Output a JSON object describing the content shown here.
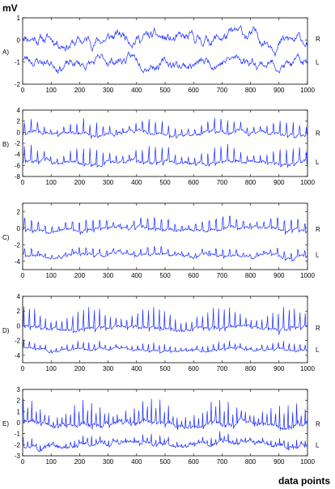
{
  "figure": {
    "ylabel": "mV",
    "xlabel": "data points",
    "series_color": "#1a2bff"
  },
  "chart_data": [
    {
      "type": "line",
      "panel": "A)",
      "xlim": [
        0,
        1000
      ],
      "ylim": [
        -2,
        1
      ],
      "xticks": [
        0,
        100,
        200,
        300,
        400,
        500,
        600,
        700,
        800,
        900,
        1000
      ],
      "yticks": [
        -2,
        -1,
        0,
        1
      ],
      "grid": false,
      "series": [
        {
          "name": "R",
          "mean": 0.05,
          "amplitude": 0.35,
          "spike_height": 0,
          "spike_period": 0,
          "noise_seed": 11
        },
        {
          "name": "L",
          "mean": -1.0,
          "amplitude": 0.3,
          "spike_height": 0,
          "spike_period": 0,
          "noise_seed": 23
        }
      ]
    },
    {
      "type": "line",
      "panel": "B)",
      "xlim": [
        0,
        1000
      ],
      "ylim": [
        -8,
        4
      ],
      "xticks": [
        0,
        100,
        200,
        300,
        400,
        500,
        600,
        700,
        800,
        900,
        1000
      ],
      "yticks": [
        -8,
        -6,
        -4,
        -2,
        0,
        2,
        4
      ],
      "grid": false,
      "series": [
        {
          "name": "R",
          "mean": -0.2,
          "amplitude": 0.5,
          "spike_height": 2.6,
          "spike_period": 23,
          "noise_seed": 31
        },
        {
          "name": "L",
          "mean": -5.4,
          "amplitude": 0.5,
          "spike_height": 3.2,
          "spike_period": 23,
          "noise_seed": 47
        }
      ]
    },
    {
      "type": "line",
      "panel": "C)",
      "xlim": [
        0,
        1000
      ],
      "ylim": [
        -5,
        3
      ],
      "xticks": [
        0,
        100,
        200,
        300,
        400,
        500,
        600,
        700,
        800,
        900,
        1000
      ],
      "yticks": [
        -4,
        -2,
        0,
        2
      ],
      "grid": false,
      "series": [
        {
          "name": "R",
          "mean": -0.1,
          "amplitude": 0.3,
          "spike_height": 1.9,
          "spike_period": 24,
          "noise_seed": 53
        },
        {
          "name": "L",
          "mean": -3.2,
          "amplitude": 0.3,
          "spike_height": 1.1,
          "spike_period": 24,
          "noise_seed": 67
        }
      ]
    },
    {
      "type": "line",
      "panel": "D)",
      "xlim": [
        0,
        1000
      ],
      "ylim": [
        -5,
        4
      ],
      "xticks": [
        0,
        100,
        200,
        300,
        400,
        500,
        600,
        700,
        800,
        900,
        1000
      ],
      "yticks": [
        -4,
        -2,
        0,
        2,
        4
      ],
      "grid": false,
      "series": [
        {
          "name": "R",
          "mean": -0.3,
          "amplitude": 0.3,
          "spike_height": 3.2,
          "spike_period": 19,
          "noise_seed": 71
        },
        {
          "name": "L",
          "mean": -3.2,
          "amplitude": 0.25,
          "spike_height": 1.2,
          "spike_period": 19,
          "noise_seed": 83
        }
      ]
    },
    {
      "type": "line",
      "panel": "E)",
      "xlim": [
        0,
        1000
      ],
      "ylim": [
        -3,
        3
      ],
      "xticks": [
        0,
        100,
        200,
        300,
        400,
        500,
        600,
        700,
        800,
        900,
        1000
      ],
      "yticks": [
        -3,
        -2,
        -1,
        0,
        1,
        2,
        3
      ],
      "grid": false,
      "series": [
        {
          "name": "R",
          "mean": -0.1,
          "amplitude": 0.35,
          "spike_height": 2.3,
          "spike_period": 15,
          "noise_seed": 89
        },
        {
          "name": "L",
          "mean": -2.0,
          "amplitude": 0.3,
          "spike_height": 0.8,
          "spike_period": 15,
          "noise_seed": 97
        }
      ]
    }
  ]
}
